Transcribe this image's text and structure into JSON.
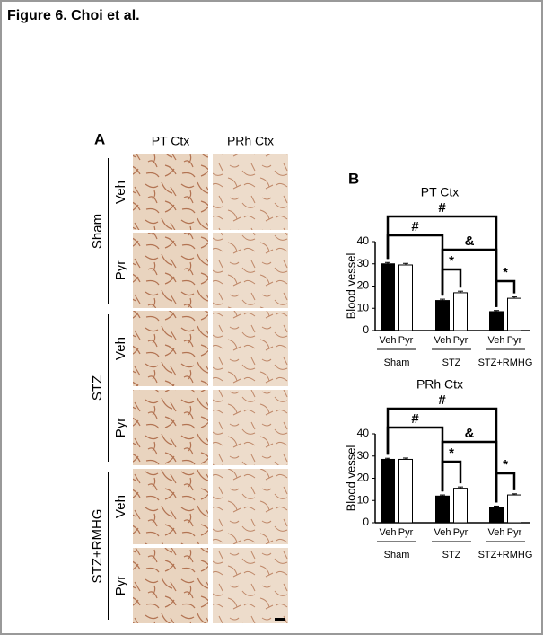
{
  "header": {
    "title": "Figure 6. Choi et al."
  },
  "panel_a": {
    "label": "A",
    "columns": [
      "PT Ctx",
      "PRh Ctx"
    ],
    "groups": [
      {
        "name": "Sham",
        "rows": [
          "Veh",
          "Pyr"
        ]
      },
      {
        "name": "STZ",
        "rows": [
          "Veh",
          "Pyr"
        ]
      },
      {
        "name": "STZ+RMHG",
        "rows": [
          "Veh",
          "Pyr"
        ]
      }
    ]
  },
  "panel_b": {
    "label": "B"
  },
  "chart_data": [
    {
      "type": "bar",
      "title": "PT Ctx",
      "y_label": "Blood vessel",
      "categories": [
        "Sham",
        "STZ",
        "STZ+RMHG"
      ],
      "series": [
        {
          "name": "Veh",
          "color": "#000000",
          "values": [
            30,
            13.5,
            8.5
          ],
          "errors": [
            0.6,
            0.6,
            0.5
          ]
        },
        {
          "name": "Pyr",
          "color": "#ffffff",
          "values": [
            29.5,
            17,
            14.5
          ],
          "errors": [
            0.7,
            0.7,
            0.6
          ]
        }
      ],
      "ylim": [
        0,
        40
      ],
      "yticks": [
        0,
        10,
        20,
        30,
        40
      ],
      "annotations": [
        "#",
        "#",
        "&",
        "*",
        "*"
      ]
    },
    {
      "type": "bar",
      "title": "PRh Ctx",
      "y_label": "Blood vessel",
      "categories": [
        "Sham",
        "STZ",
        "STZ+RMHG"
      ],
      "series": [
        {
          "name": "Veh",
          "color": "#000000",
          "values": [
            28.5,
            12,
            7
          ],
          "errors": [
            0.5,
            0.5,
            0.5
          ]
        },
        {
          "name": "Pyr",
          "color": "#ffffff",
          "values": [
            28.5,
            15.5,
            12.5
          ],
          "errors": [
            0.6,
            0.6,
            0.5
          ]
        }
      ],
      "ylim": [
        0,
        40
      ],
      "yticks": [
        0,
        10,
        20,
        30,
        40
      ],
      "annotations": [
        "#",
        "#",
        "&",
        "*",
        "*"
      ]
    }
  ]
}
